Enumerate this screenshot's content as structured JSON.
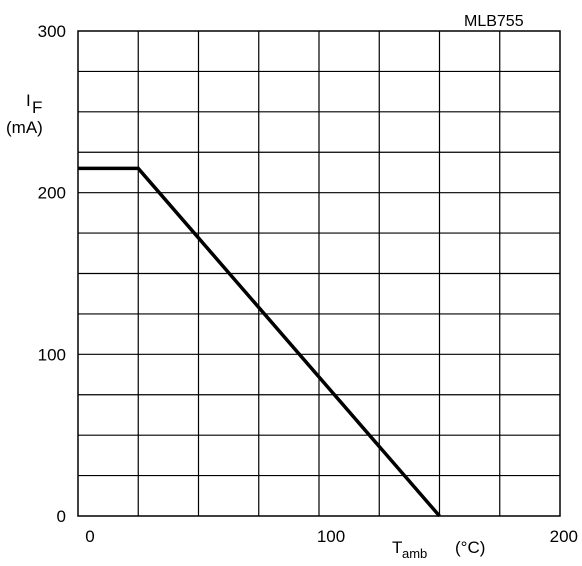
{
  "chart_data": {
    "type": "line",
    "code": "MLB755",
    "ylabel": {
      "symbol": "I",
      "subscript": "F",
      "unit": "(mA)"
    },
    "xlabel": {
      "symbol": "T",
      "subscript": "amb",
      "unit": "(°C)"
    },
    "xlim": [
      0,
      200
    ],
    "ylim": [
      0,
      300
    ],
    "x_tick_labels": [
      "0",
      "100",
      "200"
    ],
    "x_tick_values": [
      0,
      100,
      200
    ],
    "y_tick_labels": [
      "0",
      "100",
      "200",
      "300"
    ],
    "y_tick_values": [
      0,
      100,
      200,
      300
    ],
    "grid": true,
    "grid_x_step": 25,
    "grid_y_step": 25,
    "series": [
      {
        "x": [
          0,
          25,
          150
        ],
        "y": [
          215,
          215,
          0
        ],
        "color": "#000000"
      }
    ]
  }
}
